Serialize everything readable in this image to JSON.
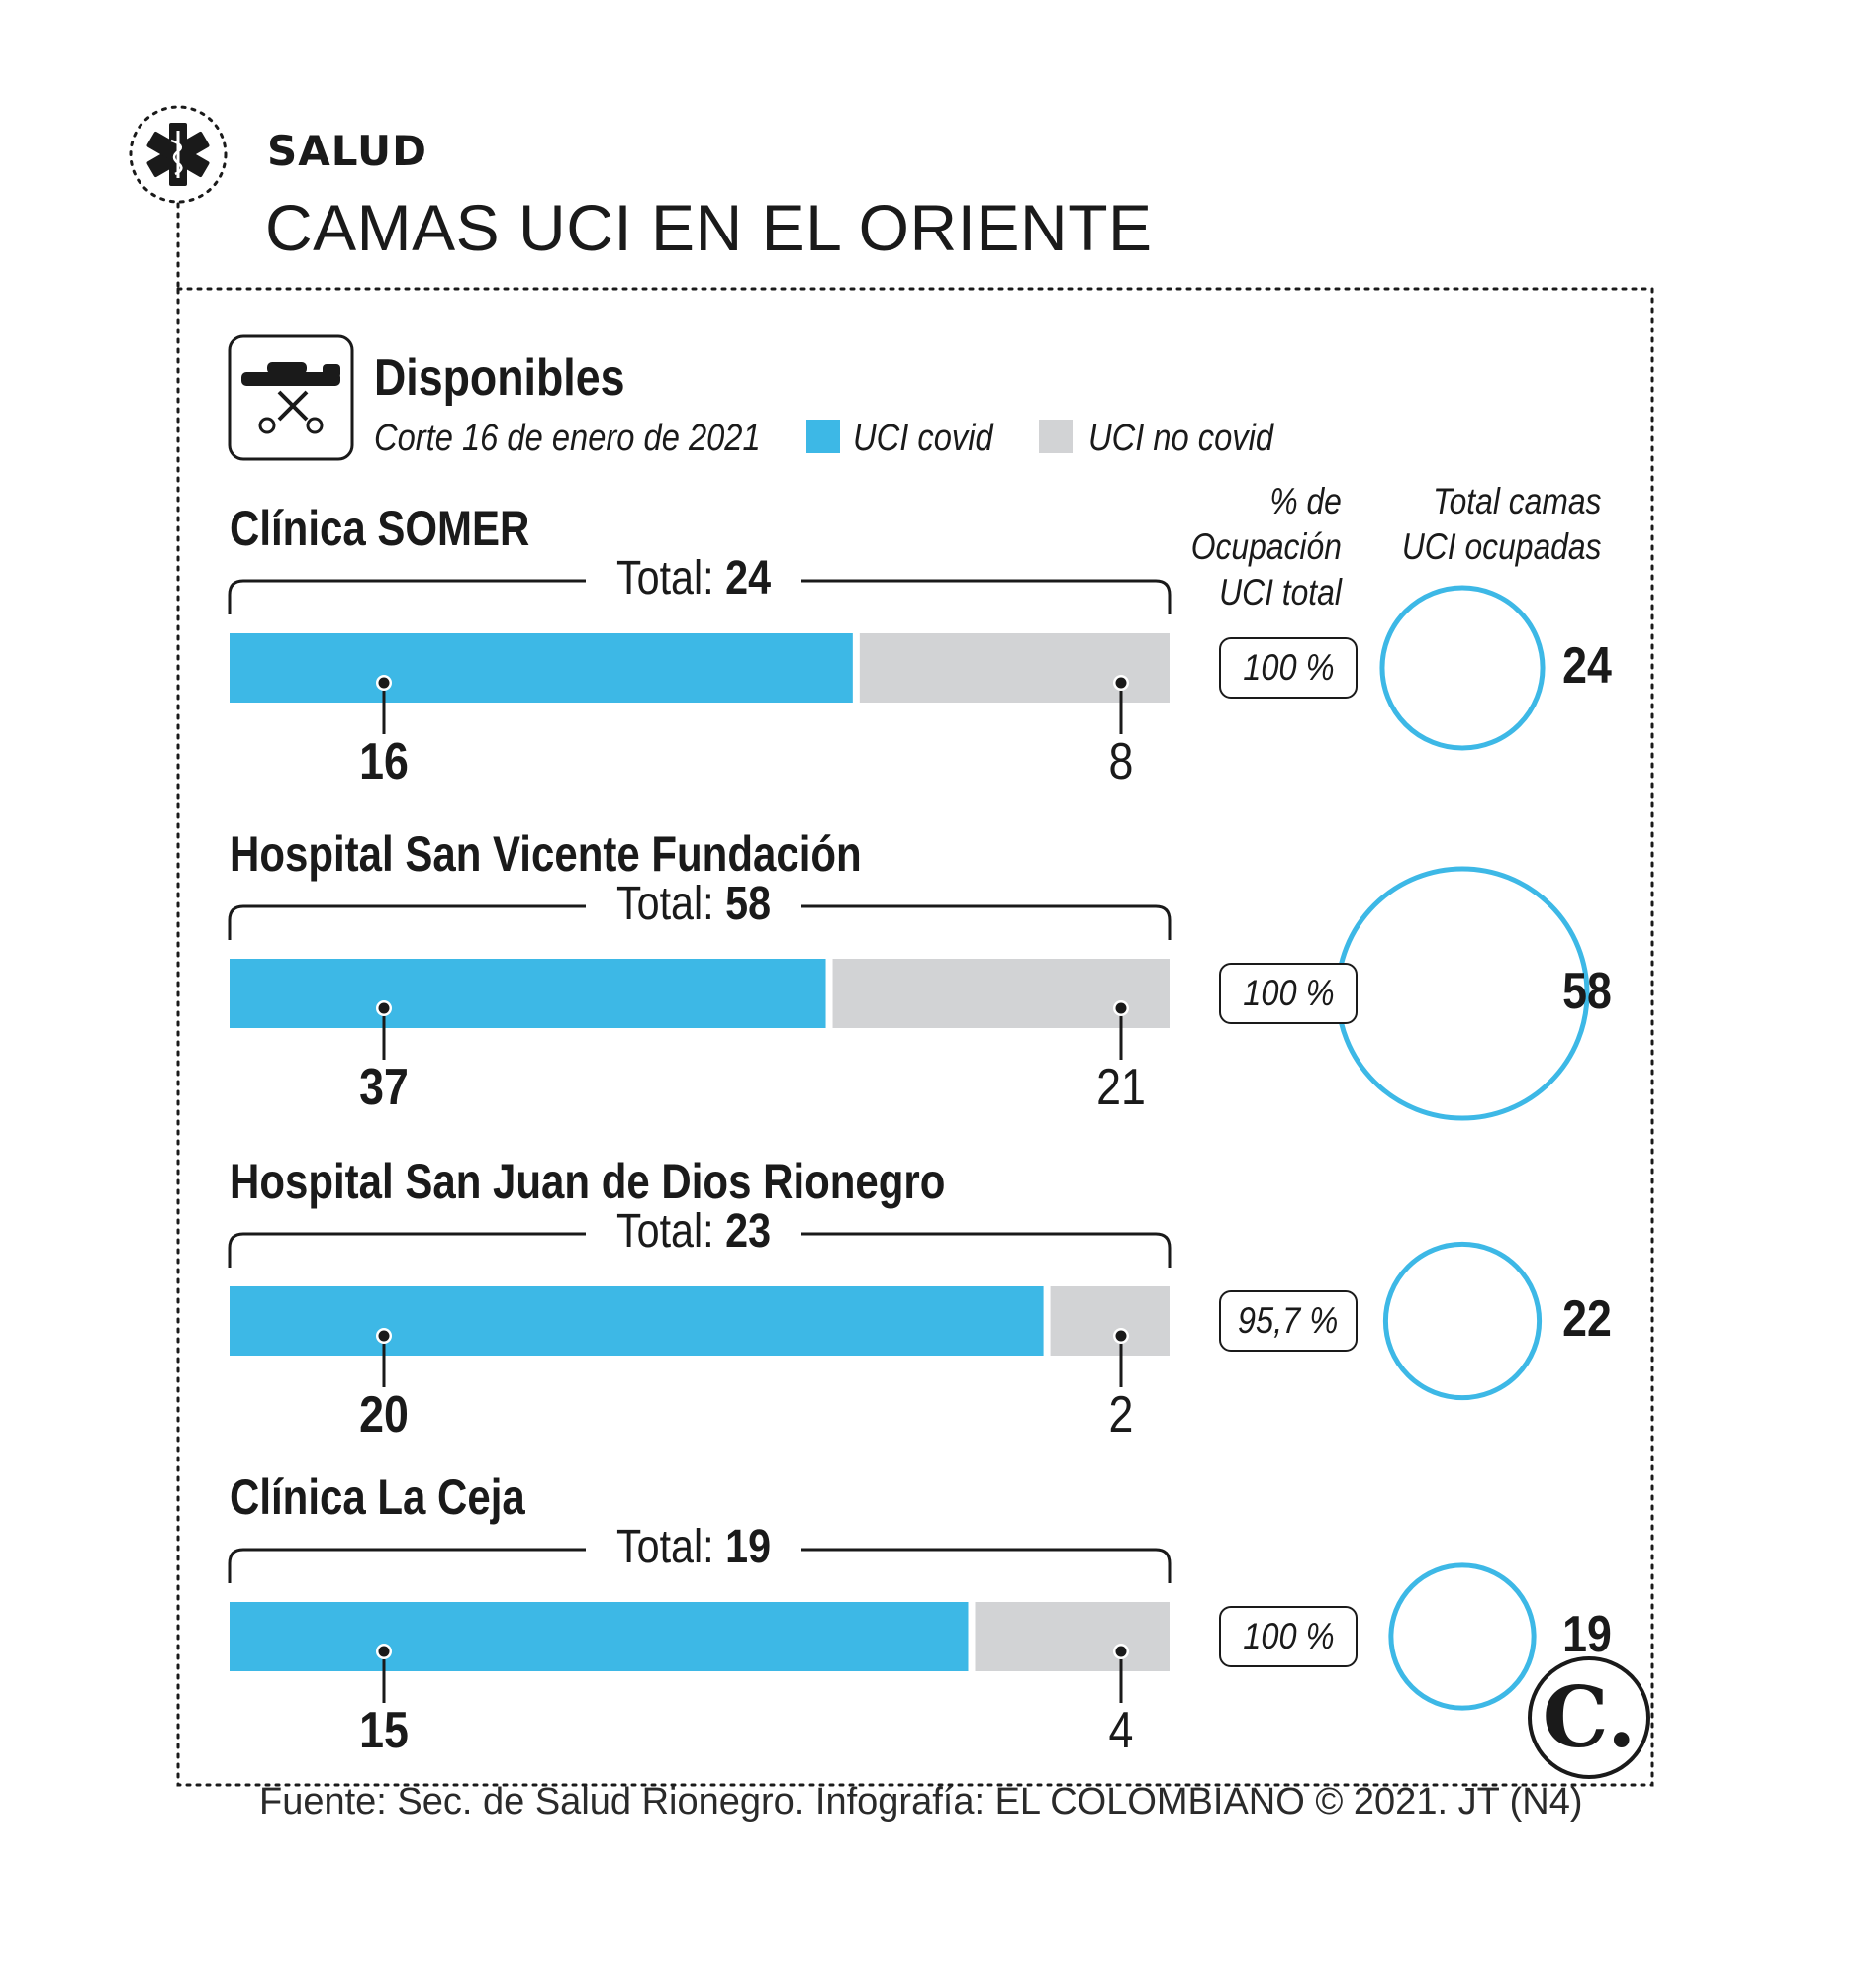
{
  "header": {
    "section": "SALUD",
    "title": "CAMAS UCI EN EL ORIENTE"
  },
  "panel": {
    "heading": "Disponibles",
    "date": "Corte 16 de enero de 2021",
    "legend_covid": "UCI covid",
    "legend_no_covid": "UCI no covid",
    "col_pct_line1": "% de",
    "col_pct_line2": "Ocupación",
    "col_pct_line3": "UCI total",
    "col_total_line1": "Total camas",
    "col_total_line2": "UCI ocupadas",
    "total_prefix": "Total:"
  },
  "colors": {
    "covid": "#3db8e6",
    "no_covid": "#d2d3d5",
    "circle": "#3db8e6",
    "ink": "#1a1a1a"
  },
  "icons": [
    "medical-star-icon",
    "stretcher-icon",
    "el-colombiano-logo"
  ],
  "chart_data": {
    "type": "bar",
    "orientation": "horizontal-stacked",
    "categories": [
      "Clínica SOMER",
      "Hospital San Vicente Fundación",
      "Hospital San Juan de Dios Rionegro",
      "Clínica La Ceja"
    ],
    "series": [
      {
        "name": "UCI covid",
        "values": [
          16,
          37,
          20,
          15
        ],
        "labels": [
          "16",
          "37",
          "20",
          "15"
        ]
      },
      {
        "name": "UCI no covid",
        "values": [
          8,
          21,
          2,
          4
        ],
        "labels": [
          "8",
          "21",
          "2",
          "4"
        ]
      }
    ],
    "totals": [
      24,
      58,
      23,
      19
    ],
    "totals_labels": [
      "24",
      "58",
      "23",
      "19"
    ],
    "occupancy_pct": [
      "100 %",
      "100 %",
      "95,7 %",
      "100 %"
    ],
    "occupied_beds": [
      24,
      58,
      22,
      19
    ],
    "occupied_labels": [
      "24",
      "58",
      "22",
      "19"
    ]
  },
  "footer": "Fuente: Sec. de Salud Rionegro. Infografía: EL COLOMBIANO © 2021. JT (N4)",
  "logo_text": "C."
}
